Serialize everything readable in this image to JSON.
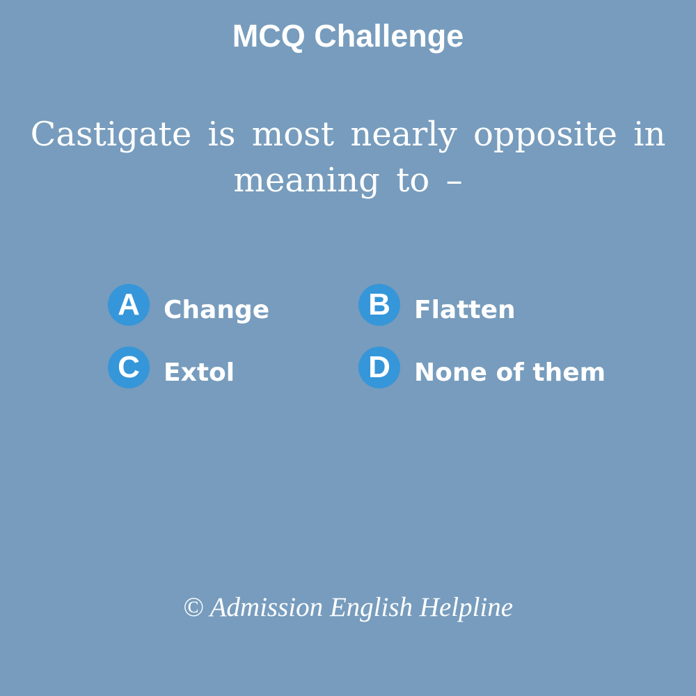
{
  "title": "MCQ Challenge",
  "question": "Castigate is most nearly opposite in meaning to –",
  "options": [
    {
      "letter": "A",
      "text": "Change"
    },
    {
      "letter": "B",
      "text": "Flatten"
    },
    {
      "letter": "C",
      "text": "Extol"
    },
    {
      "letter": "D",
      "text": "None of them"
    }
  ],
  "footer": "© Admission English Helpline",
  "colors": {
    "background": "#779cbd",
    "badge": "#3596d9",
    "text": "#ffffff"
  }
}
